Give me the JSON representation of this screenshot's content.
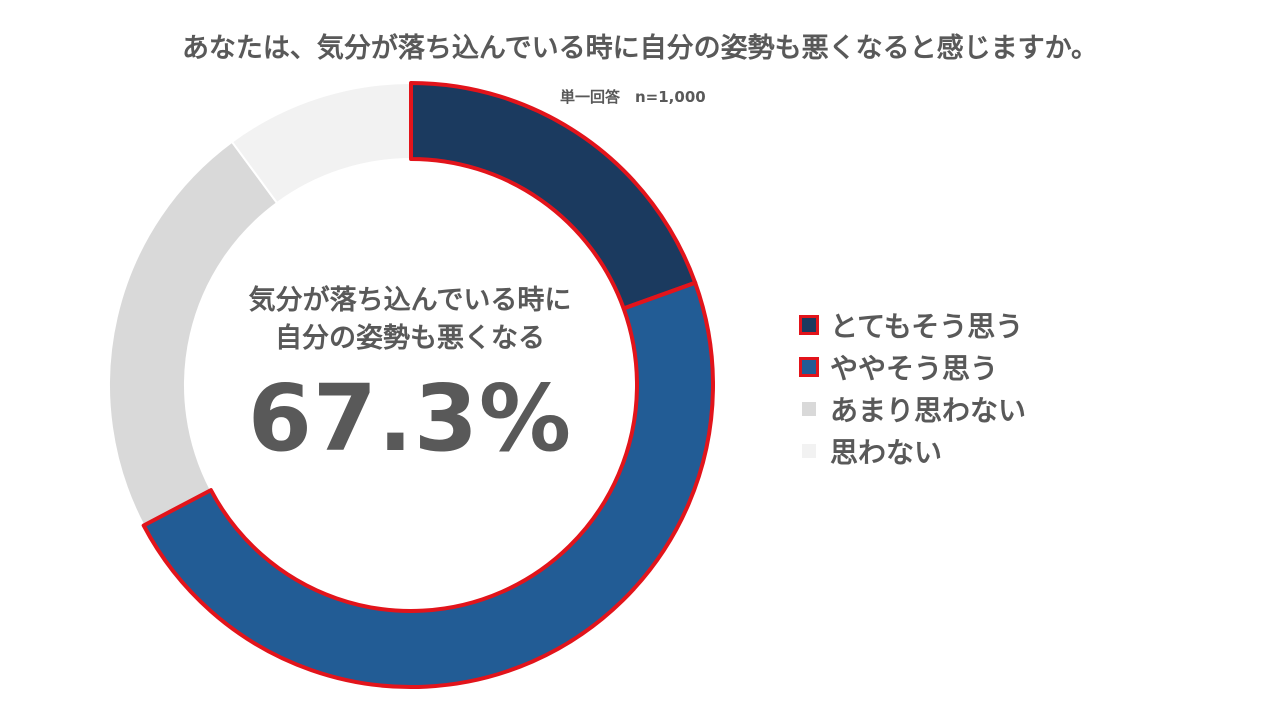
{
  "chart_data": {
    "type": "pie",
    "variant": "donut",
    "title": "あなたは、気分が落ち込んでいる時に自分の姿勢も悪くなると感じますか。",
    "subtitle": "単一回答　n=1,000",
    "center_text": {
      "line1": "気分が落ち込んでいる時に",
      "line2": "自分の姿勢も悪くなる",
      "value": "67.3%"
    },
    "categories": [
      "とてもそう思う",
      "ややそう思う",
      "あまり思わない",
      "思わない"
    ],
    "values": [
      19.5,
      47.8,
      22.6,
      10.1
    ],
    "colors": [
      "#1b3a5f",
      "#225c95",
      "#d9d9d9",
      "#f2f2f2"
    ],
    "highlight_outline_color": "#e2141b",
    "highlighted_categories": [
      "とてもそう思う",
      "ややそう思う"
    ],
    "legend_position": "right",
    "start_angle": "top, clockwise"
  }
}
